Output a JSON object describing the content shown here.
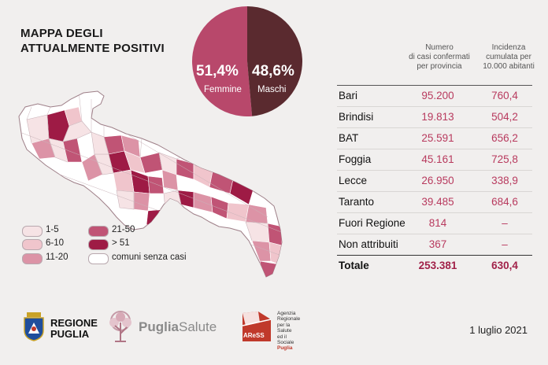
{
  "title_line1": "MAPPA DEGLI",
  "title_line2": "ATTUALMENTE POSITIVI",
  "pie": {
    "female_pct": "51,4%",
    "female_label": "Femmine",
    "female_value": 51.4,
    "female_color": "#b8486b",
    "male_pct": "48,6%",
    "male_label": "Maschi",
    "male_value": 48.6,
    "male_color": "#5a2a2f"
  },
  "table": {
    "col1_header": [
      "Numero",
      "di casi confermati",
      "per provincia"
    ],
    "col2_header": [
      "Incidenza",
      "cumulata per",
      "10.000 abitanti"
    ],
    "rows": [
      {
        "name": "Bari",
        "cases": "95.200",
        "incidence": "760,4"
      },
      {
        "name": "Brindisi",
        "cases": "19.813",
        "incidence": "504,2"
      },
      {
        "name": "BAT",
        "cases": "25.591",
        "incidence": "656,2"
      },
      {
        "name": "Foggia",
        "cases": "45.161",
        "incidence": "725,8"
      },
      {
        "name": "Lecce",
        "cases": "26.950",
        "incidence": "338,9"
      },
      {
        "name": "Taranto",
        "cases": "39.485",
        "incidence": "684,6"
      },
      {
        "name": "Fuori Regione",
        "cases": "814",
        "incidence": "–"
      },
      {
        "name": "Non attribuiti",
        "cases": "367",
        "incidence": "–"
      }
    ],
    "total": {
      "name": "Totale",
      "cases": "253.381",
      "incidence": "630,4"
    }
  },
  "legend": [
    {
      "label": "1-5",
      "color": "#f6e3e5"
    },
    {
      "label": "6-10",
      "color": "#f0c5cc"
    },
    {
      "label": "11-20",
      "color": "#dc93a6"
    },
    {
      "label": "21-50",
      "color": "#c05475"
    },
    {
      "label": "> 51",
      "color": "#9e1b45"
    },
    {
      "label": "comuni senza casi",
      "color": "#ffffff"
    }
  ],
  "footer": {
    "region_line1": "REGIONE",
    "region_line2": "PUGLIA",
    "puglia_bold": "Puglia",
    "puglia_light": "Salute",
    "aress_mark": "AReSS",
    "aress_text": [
      "Agenzia",
      "Regionale",
      "per la Salute",
      "ed il Sociale",
      "Puglia"
    ],
    "date": "1 luglio 2021"
  }
}
